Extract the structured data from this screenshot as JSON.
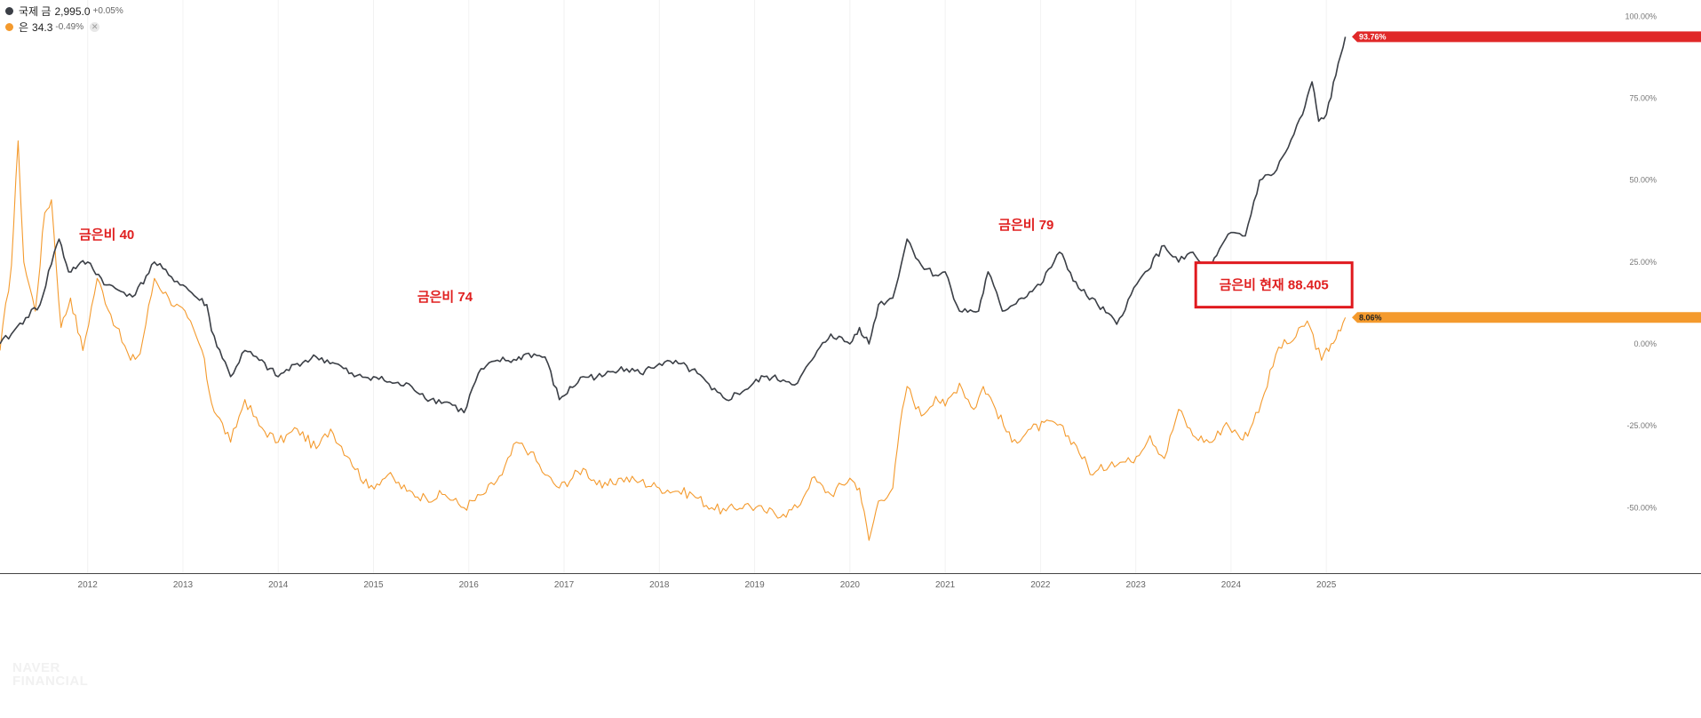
{
  "legend": [
    {
      "name": "국제 금",
      "value": "2,995.0",
      "change": "+0.05%",
      "color": "#3b3f46"
    },
    {
      "name": "은",
      "value": "34.3",
      "change": "-0.49%",
      "color": "#f49a2d",
      "close_symbol": "✕"
    }
  ],
  "watermark": {
    "line1": "NAVER",
    "line2": "FINANCIAL"
  },
  "chart_data": {
    "type": "line",
    "x_range": [
      2011.08,
      2025.25
    ],
    "y_range": [
      -70,
      105
    ],
    "y_ticks": [
      100,
      75,
      50,
      25,
      0,
      -25,
      -50
    ],
    "y_tick_labels": [
      "100.00%",
      "75.00%",
      "50.00%",
      "25.00%",
      "0.00%",
      "-25.00%",
      "-50.00%"
    ],
    "x_ticks": [
      2012,
      2013,
      2014,
      2015,
      2016,
      2017,
      2018,
      2019,
      2020,
      2021,
      2022,
      2023,
      2024,
      2025
    ],
    "x_tick_labels": [
      "2012",
      "2013",
      "2014",
      "2015",
      "2016",
      "2017",
      "2018",
      "2019",
      "2020",
      "2021",
      "2022",
      "2023",
      "2024",
      "2025"
    ],
    "series": [
      {
        "name": "국제 금",
        "color": "#3b3f46",
        "last_label": "93.76%",
        "badge_color": "#e02828",
        "points": [
          [
            2011.08,
            0
          ],
          [
            2011.2,
            3
          ],
          [
            2011.35,
            8
          ],
          [
            2011.5,
            12
          ],
          [
            2011.65,
            28
          ],
          [
            2011.7,
            32
          ],
          [
            2011.8,
            22
          ],
          [
            2011.9,
            24
          ],
          [
            2012.0,
            25
          ],
          [
            2012.2,
            18
          ],
          [
            2012.35,
            16
          ],
          [
            2012.5,
            15
          ],
          [
            2012.7,
            25
          ],
          [
            2012.85,
            21
          ],
          [
            2013.0,
            18
          ],
          [
            2013.15,
            14
          ],
          [
            2013.25,
            12
          ],
          [
            2013.3,
            4
          ],
          [
            2013.5,
            -10
          ],
          [
            2013.65,
            -2
          ],
          [
            2013.8,
            -5
          ],
          [
            2014.0,
            -10
          ],
          [
            2014.2,
            -6
          ],
          [
            2014.4,
            -4
          ],
          [
            2014.6,
            -6
          ],
          [
            2014.8,
            -10
          ],
          [
            2015.0,
            -10
          ],
          [
            2015.2,
            -12
          ],
          [
            2015.4,
            -13
          ],
          [
            2015.6,
            -17
          ],
          [
            2015.8,
            -18
          ],
          [
            2015.95,
            -21
          ],
          [
            2016.1,
            -9
          ],
          [
            2016.3,
            -5
          ],
          [
            2016.5,
            -5
          ],
          [
            2016.6,
            -3
          ],
          [
            2016.8,
            -4
          ],
          [
            2016.95,
            -17
          ],
          [
            2017.2,
            -10
          ],
          [
            2017.4,
            -10
          ],
          [
            2017.6,
            -7
          ],
          [
            2017.8,
            -9
          ],
          [
            2018.0,
            -6
          ],
          [
            2018.2,
            -6
          ],
          [
            2018.4,
            -9
          ],
          [
            2018.55,
            -14
          ],
          [
            2018.7,
            -17
          ],
          [
            2018.9,
            -14
          ],
          [
            2019.1,
            -10
          ],
          [
            2019.3,
            -11
          ],
          [
            2019.45,
            -12
          ],
          [
            2019.6,
            -5
          ],
          [
            2019.8,
            3
          ],
          [
            2020.0,
            0
          ],
          [
            2020.1,
            5
          ],
          [
            2020.2,
            0
          ],
          [
            2020.3,
            12
          ],
          [
            2020.45,
            14
          ],
          [
            2020.6,
            32
          ],
          [
            2020.75,
            24
          ],
          [
            2020.9,
            21
          ],
          [
            2021.0,
            22
          ],
          [
            2021.15,
            10
          ],
          [
            2021.35,
            10
          ],
          [
            2021.45,
            22
          ],
          [
            2021.6,
            10
          ],
          [
            2021.8,
            14
          ],
          [
            2022.0,
            18
          ],
          [
            2022.2,
            28
          ],
          [
            2022.4,
            17
          ],
          [
            2022.6,
            12
          ],
          [
            2022.8,
            6
          ],
          [
            2022.95,
            15
          ],
          [
            2023.1,
            22
          ],
          [
            2023.3,
            30
          ],
          [
            2023.45,
            25
          ],
          [
            2023.6,
            28
          ],
          [
            2023.75,
            21
          ],
          [
            2023.85,
            27
          ],
          [
            2024.0,
            34
          ],
          [
            2024.15,
            33
          ],
          [
            2024.3,
            50
          ],
          [
            2024.45,
            52
          ],
          [
            2024.6,
            60
          ],
          [
            2024.75,
            70
          ],
          [
            2024.85,
            80
          ],
          [
            2024.92,
            68
          ],
          [
            2025.0,
            70
          ],
          [
            2025.1,
            82
          ],
          [
            2025.2,
            93.76
          ]
        ]
      },
      {
        "name": "은",
        "color": "#f49a2d",
        "last_label": "8.06%",
        "badge_color": "#f49a2d",
        "points": [
          [
            2011.08,
            -2
          ],
          [
            2011.2,
            24
          ],
          [
            2011.27,
            62
          ],
          [
            2011.33,
            25
          ],
          [
            2011.45,
            10
          ],
          [
            2011.55,
            40
          ],
          [
            2011.62,
            44
          ],
          [
            2011.72,
            5
          ],
          [
            2011.82,
            14
          ],
          [
            2011.95,
            -2
          ],
          [
            2012.1,
            20
          ],
          [
            2012.3,
            5
          ],
          [
            2012.45,
            -5
          ],
          [
            2012.55,
            -3
          ],
          [
            2012.7,
            20
          ],
          [
            2012.85,
            14
          ],
          [
            2013.05,
            8
          ],
          [
            2013.2,
            -2
          ],
          [
            2013.3,
            -18
          ],
          [
            2013.5,
            -30
          ],
          [
            2013.65,
            -17
          ],
          [
            2013.8,
            -25
          ],
          [
            2014.0,
            -30
          ],
          [
            2014.2,
            -26
          ],
          [
            2014.4,
            -32
          ],
          [
            2014.55,
            -26
          ],
          [
            2014.75,
            -35
          ],
          [
            2014.95,
            -44
          ],
          [
            2015.15,
            -40
          ],
          [
            2015.35,
            -45
          ],
          [
            2015.55,
            -47
          ],
          [
            2015.75,
            -46
          ],
          [
            2015.95,
            -50
          ],
          [
            2016.15,
            -46
          ],
          [
            2016.35,
            -40
          ],
          [
            2016.5,
            -30
          ],
          [
            2016.65,
            -33
          ],
          [
            2016.8,
            -40
          ],
          [
            2016.95,
            -44
          ],
          [
            2017.2,
            -38
          ],
          [
            2017.4,
            -44
          ],
          [
            2017.6,
            -41
          ],
          [
            2017.8,
            -42
          ],
          [
            2018.0,
            -44
          ],
          [
            2018.2,
            -45
          ],
          [
            2018.35,
            -46
          ],
          [
            2018.55,
            -50
          ],
          [
            2018.7,
            -51
          ],
          [
            2018.9,
            -49
          ],
          [
            2019.1,
            -51
          ],
          [
            2019.3,
            -52
          ],
          [
            2019.45,
            -50
          ],
          [
            2019.6,
            -41
          ],
          [
            2019.8,
            -46
          ],
          [
            2020.0,
            -41
          ],
          [
            2020.1,
            -44
          ],
          [
            2020.2,
            -60
          ],
          [
            2020.3,
            -48
          ],
          [
            2020.45,
            -44
          ],
          [
            2020.55,
            -20
          ],
          [
            2020.6,
            -13
          ],
          [
            2020.75,
            -22
          ],
          [
            2020.9,
            -16
          ],
          [
            2021.0,
            -19
          ],
          [
            2021.15,
            -12
          ],
          [
            2021.3,
            -20
          ],
          [
            2021.4,
            -13
          ],
          [
            2021.5,
            -18
          ],
          [
            2021.7,
            -30
          ],
          [
            2021.9,
            -26
          ],
          [
            2022.15,
            -24
          ],
          [
            2022.35,
            -30
          ],
          [
            2022.55,
            -40
          ],
          [
            2022.75,
            -36
          ],
          [
            2022.95,
            -36
          ],
          [
            2023.15,
            -28
          ],
          [
            2023.3,
            -35
          ],
          [
            2023.45,
            -20
          ],
          [
            2023.6,
            -28
          ],
          [
            2023.8,
            -30
          ],
          [
            2023.95,
            -24
          ],
          [
            2024.1,
            -29
          ],
          [
            2024.2,
            -26
          ],
          [
            2024.35,
            -15
          ],
          [
            2024.5,
            -1
          ],
          [
            2024.65,
            1
          ],
          [
            2024.8,
            7
          ],
          [
            2024.95,
            -5
          ],
          [
            2025.05,
            0
          ],
          [
            2025.15,
            4
          ],
          [
            2025.2,
            8.06
          ]
        ]
      }
    ],
    "annotations": [
      {
        "text": "금은비 40",
        "x": 2012.2,
        "y": 32
      },
      {
        "text": "금은비 74",
        "x": 2015.75,
        "y": 13
      },
      {
        "text": "금은비 79",
        "x": 2021.85,
        "y": 35
      }
    ],
    "highlight_box": {
      "text": "금은비 현재 88.405",
      "x": 2024.45,
      "y": 18
    }
  }
}
